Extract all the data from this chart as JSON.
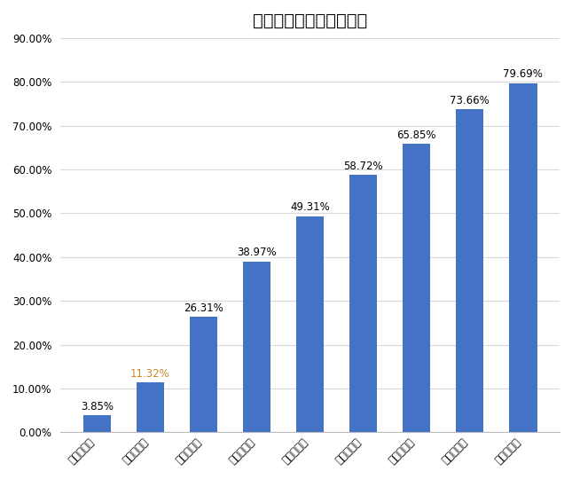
{
  "title": "筛查中小学生近视率统计",
  "categories": [
    "小学一年级",
    "小学二年级",
    "小学三年级",
    "小学四年级",
    "小学五年级",
    "小学六年级",
    "初中一年级",
    "初中二年级",
    "初中三年级"
  ],
  "values": [
    3.85,
    11.32,
    26.31,
    38.97,
    49.31,
    58.72,
    65.85,
    73.66,
    79.69
  ],
  "labels": [
    "3.85%",
    "11.32%",
    "26.31%",
    "38.97%",
    "49.31%",
    "58.72%",
    "65.85%",
    "73.66%",
    "79.69%"
  ],
  "label_colors": [
    "#000000",
    "#C8882A",
    "#000000",
    "#000000",
    "#000000",
    "#000000",
    "#000000",
    "#000000",
    "#000000"
  ],
  "bar_color": "#4472C4",
  "ylim": [
    0,
    90
  ],
  "yticks": [
    0,
    10,
    20,
    30,
    40,
    50,
    60,
    70,
    80,
    90
  ],
  "ytick_labels": [
    "0.00%",
    "10.00%",
    "20.00%",
    "30.00%",
    "40.00%",
    "50.00%",
    "60.00%",
    "70.00%",
    "80.00%",
    "90.00%"
  ],
  "title_fontsize": 14,
  "label_fontsize": 8.5,
  "tick_fontsize": 8.5,
  "background_color": "#ffffff",
  "grid_color": "#d9d9d9",
  "bar_width": 0.52
}
